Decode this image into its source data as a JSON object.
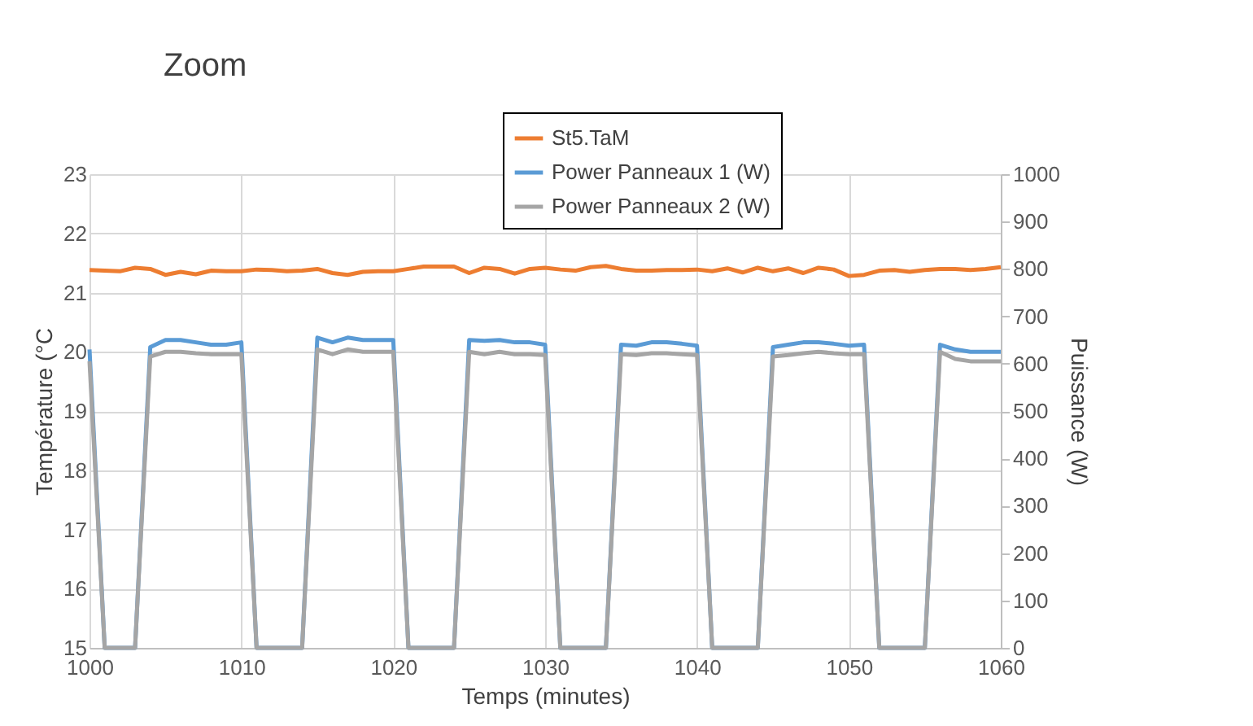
{
  "chart_data": {
    "type": "line",
    "title": "Zoom",
    "xlabel": "Temps (minutes)",
    "ylabel": "Température (°C",
    "y2label": "Puissance (W)",
    "x": [
      1000,
      1001,
      1002,
      1003,
      1004,
      1005,
      1006,
      1007,
      1008,
      1009,
      1010,
      1011,
      1012,
      1013,
      1014,
      1015,
      1016,
      1017,
      1018,
      1019,
      1020,
      1021,
      1022,
      1023,
      1024,
      1025,
      1026,
      1027,
      1028,
      1029,
      1030,
      1031,
      1032,
      1033,
      1034,
      1035,
      1036,
      1037,
      1038,
      1039,
      1040,
      1041,
      1042,
      1043,
      1044,
      1045,
      1046,
      1047,
      1048,
      1049,
      1050,
      1051,
      1052,
      1053,
      1054,
      1055,
      1056,
      1057,
      1058,
      1059,
      1060
    ],
    "series": [
      {
        "name": "St5.TaM",
        "color": "#ed7d31",
        "values": [
          21.38,
          21.37,
          21.36,
          21.42,
          21.4,
          21.3,
          21.35,
          21.31,
          21.37,
          21.36,
          21.36,
          21.39,
          21.38,
          21.36,
          21.37,
          21.4,
          21.33,
          21.3,
          21.35,
          21.36,
          21.36,
          21.4,
          21.44,
          21.44,
          21.44,
          21.33,
          21.42,
          21.4,
          21.32,
          21.4,
          21.42,
          21.39,
          21.37,
          21.43,
          21.45,
          21.4,
          21.37,
          21.37,
          21.38,
          21.38,
          21.39,
          21.36,
          21.41,
          21.34,
          21.42,
          21.36,
          21.41,
          21.33,
          21.42,
          21.39,
          21.28,
          21.3,
          21.37,
          21.38,
          21.35,
          21.38,
          21.4,
          21.4,
          21.38,
          21.4,
          21.43
        ]
      },
      {
        "name": "Power Panneaux 1 (W)",
        "color": "#5b9bd5",
        "axis": "y2",
        "values": [
          630,
          0,
          0,
          0,
          635,
          650,
          650,
          645,
          640,
          640,
          645,
          0,
          0,
          0,
          0,
          655,
          645,
          655,
          650,
          650,
          650,
          0,
          0,
          0,
          0,
          650,
          648,
          650,
          645,
          645,
          640,
          0,
          0,
          0,
          0,
          640,
          638,
          645,
          645,
          642,
          638,
          0,
          0,
          0,
          0,
          635,
          640,
          645,
          645,
          642,
          638,
          640,
          0,
          0,
          0,
          0,
          640,
          630,
          625,
          625,
          625
        ]
      },
      {
        "name": "Power Panneaux 2 (W)",
        "color": "#a5a5a5",
        "axis": "y2",
        "values": [
          605,
          0,
          0,
          0,
          615,
          625,
          625,
          622,
          620,
          620,
          620,
          0,
          0,
          0,
          0,
          630,
          620,
          630,
          625,
          625,
          625,
          0,
          0,
          0,
          0,
          625,
          620,
          625,
          620,
          620,
          618,
          0,
          0,
          0,
          0,
          620,
          618,
          622,
          622,
          620,
          618,
          0,
          0,
          0,
          0,
          615,
          618,
          622,
          625,
          622,
          620,
          620,
          0,
          0,
          0,
          0,
          625,
          610,
          605,
          605,
          605
        ]
      }
    ],
    "xlim": [
      1000,
      1060
    ],
    "xticks": [
      1000,
      1010,
      1020,
      1030,
      1040,
      1050,
      1060
    ],
    "ylim": [
      15,
      23
    ],
    "yticks": [
      15,
      16,
      17,
      18,
      19,
      20,
      21,
      22,
      23
    ],
    "y2lim": [
      0,
      1000
    ],
    "y2ticks": [
      0,
      100,
      200,
      300,
      400,
      500,
      600,
      700,
      800,
      900,
      1000
    ],
    "grid": true,
    "legend": "top right",
    "marker": "none",
    "line_style": "solid"
  }
}
